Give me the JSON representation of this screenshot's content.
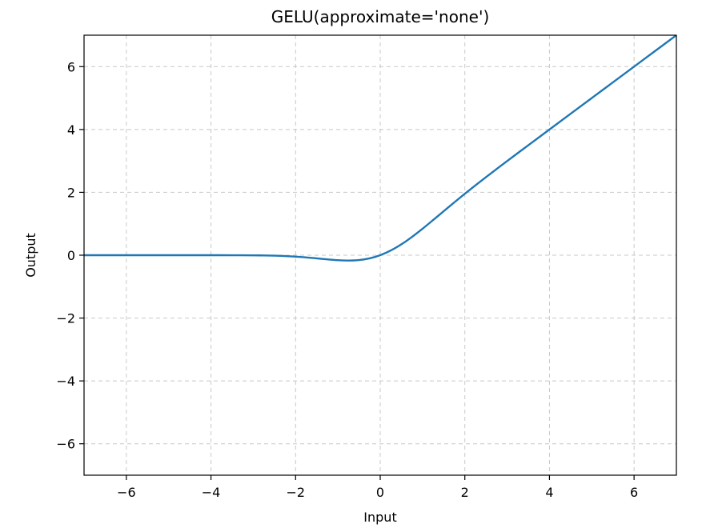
{
  "chart_data": {
    "type": "line",
    "title": "GELU(approximate='none')",
    "xlabel": "Input",
    "ylabel": "Output",
    "xlim": [
      -7,
      7
    ],
    "ylim": [
      -7,
      7
    ],
    "grid": true,
    "legend": "none",
    "x_ticks": [
      {
        "value": -6,
        "label": "−6"
      },
      {
        "value": -4,
        "label": "−4"
      },
      {
        "value": -2,
        "label": "−2"
      },
      {
        "value": 0,
        "label": "0"
      },
      {
        "value": 2,
        "label": "2"
      },
      {
        "value": 4,
        "label": "4"
      },
      {
        "value": 6,
        "label": "6"
      }
    ],
    "y_ticks": [
      {
        "value": -6,
        "label": "−6"
      },
      {
        "value": -4,
        "label": "−4"
      },
      {
        "value": -2,
        "label": "−2"
      },
      {
        "value": 0,
        "label": "0"
      },
      {
        "value": 2,
        "label": "2"
      },
      {
        "value": 4,
        "label": "4"
      },
      {
        "value": 6,
        "label": "6"
      }
    ],
    "series": [
      {
        "color": "#1f77b4",
        "x": [
          -7,
          -6.5,
          -6,
          -5.5,
          -5,
          -4.5,
          -4,
          -3.5,
          -3,
          -2.75,
          -2.5,
          -2.25,
          -2,
          -1.75,
          -1.5,
          -1.25,
          -1,
          -0.75,
          -0.5,
          -0.25,
          0,
          0.25,
          0.5,
          0.75,
          1,
          1.25,
          1.5,
          1.75,
          2,
          2.25,
          2.5,
          2.75,
          3,
          3.5,
          4,
          4.5,
          5,
          5.5,
          6,
          6.5,
          7
        ],
        "y": [
          0,
          0,
          0,
          0,
          0,
          0,
          -0.0001,
          -0.0008,
          -0.004,
          -0.0082,
          -0.0155,
          -0.0275,
          -0.0455,
          -0.0702,
          -0.1002,
          -0.132,
          -0.1587,
          -0.17,
          -0.1543,
          -0.1003,
          0,
          0.1497,
          0.3457,
          0.58,
          0.8413,
          1.118,
          1.3998,
          1.6798,
          1.9545,
          2.2225,
          2.4845,
          2.7418,
          2.996,
          3.4992,
          3.9999,
          4.5,
          5,
          5.5,
          6,
          6.5,
          7
        ]
      }
    ]
  }
}
